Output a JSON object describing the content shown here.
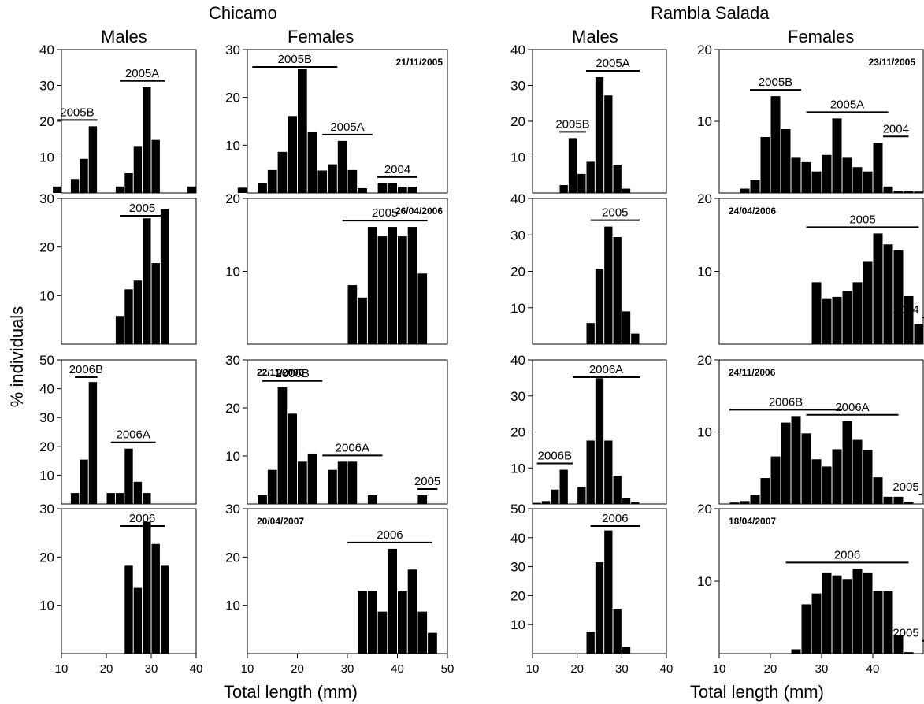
{
  "figure": {
    "sites": [
      "Chicamo",
      "Rambla Salada"
    ],
    "columns": [
      "Males",
      "Females",
      "Males",
      "Females"
    ],
    "ylabel": "% individuals",
    "xlabel": "Total length (mm)"
  },
  "chart_data": [
    {
      "type": "bar",
      "site": "Chicamo",
      "sex": "Males",
      "date": "",
      "ylim": [
        0,
        40
      ],
      "yticks": [
        10,
        20,
        30,
        40
      ],
      "xlim": [
        10,
        40
      ],
      "xticks": [
        10,
        20,
        30,
        40
      ],
      "bin_width": 2,
      "x": [
        9,
        13,
        15,
        17,
        23,
        25,
        27,
        29,
        31,
        39
      ],
      "values": [
        1.8,
        3.9,
        9.5,
        18.6,
        1.8,
        5.5,
        12.9,
        29.5,
        14.8,
        1.8
      ],
      "cohorts": [
        {
          "label": "2005B",
          "x0": 9,
          "x1": 18
        },
        {
          "label": "2005A",
          "x0": 23,
          "x1": 33
        }
      ]
    },
    {
      "type": "bar",
      "site": "Chicamo",
      "sex": "Females",
      "date": "21/11/2005",
      "ylim": [
        0,
        30
      ],
      "yticks": [
        10,
        20,
        30
      ],
      "xlim": [
        10,
        50
      ],
      "xticks": [
        10,
        20,
        30,
        40,
        50
      ],
      "bin_width": 2,
      "x": [
        9,
        13,
        15,
        17,
        19,
        21,
        23,
        25,
        27,
        29,
        31,
        33,
        37,
        39,
        41,
        43
      ],
      "values": [
        1.1,
        2.1,
        4.8,
        8.6,
        16.1,
        26.0,
        12.7,
        4.7,
        6.0,
        10.9,
        4.8,
        1.0,
        2.0,
        2.0,
        1.3,
        1.3
      ],
      "cohorts": [
        {
          "label": "2005B",
          "x0": 11,
          "x1": 28
        },
        {
          "label": "2005A",
          "x0": 25,
          "x1": 35
        },
        {
          "label": "2004",
          "x0": 36,
          "x1": 44
        }
      ]
    },
    {
      "type": "bar",
      "site": "Rambla Salada",
      "sex": "Males",
      "date": "",
      "ylim": [
        0,
        40
      ],
      "yticks": [
        10,
        20,
        30,
        40
      ],
      "xlim": [
        10,
        40
      ],
      "xticks": [
        10,
        20,
        30,
        40
      ],
      "bin_width": 2,
      "x": [
        17,
        19,
        21,
        23,
        25,
        27,
        29,
        31
      ],
      "values": [
        2.2,
        15.3,
        5.3,
        8.7,
        32.3,
        27.2,
        7.9,
        1.2
      ],
      "cohorts": [
        {
          "label": "2005B",
          "x0": 16,
          "x1": 22
        },
        {
          "label": "2005A",
          "x0": 22,
          "x1": 34
        }
      ]
    },
    {
      "type": "bar",
      "site": "Rambla Salada",
      "sex": "Females",
      "date": "23/11/2005",
      "ylim": [
        0,
        20
      ],
      "yticks": [
        10,
        20
      ],
      "xlim": [
        10,
        50
      ],
      "xticks": [
        10,
        20,
        30,
        40,
        50
      ],
      "bin_width": 2,
      "x": [
        15,
        17,
        19,
        21,
        23,
        25,
        27,
        29,
        31,
        33,
        35,
        37,
        39,
        41,
        43,
        45,
        47,
        49
      ],
      "values": [
        0.6,
        1.8,
        7.8,
        13.5,
        8.9,
        4.9,
        4.3,
        3.0,
        5.3,
        10.4,
        4.9,
        3.6,
        3.0,
        7.0,
        0.9,
        0.3,
        0.3,
        0.2
      ],
      "cohorts": [
        {
          "label": "2005B",
          "x0": 16,
          "x1": 26
        },
        {
          "label": "2005A",
          "x0": 27,
          "x1": 43
        },
        {
          "label": "2004",
          "x0": 42,
          "x1": 47
        }
      ]
    },
    {
      "type": "bar",
      "site": "Chicamo",
      "sex": "Males",
      "date": "",
      "ylim": [
        0,
        30
      ],
      "yticks": [
        10,
        20,
        30
      ],
      "xlim": [
        10,
        40
      ],
      "xticks": [
        10,
        20,
        30,
        40
      ],
      "bin_width": 2,
      "x": [
        23,
        25,
        27,
        29,
        31,
        33
      ],
      "values": [
        5.8,
        11.3,
        13.1,
        25.9,
        16.7,
        27.8
      ],
      "cohorts": [
        {
          "label": "2005",
          "x0": 23,
          "x1": 33
        }
      ]
    },
    {
      "type": "bar",
      "site": "Chicamo",
      "sex": "Females",
      "date": "26/04/2006",
      "ylim": [
        0,
        20
      ],
      "yticks": [
        10,
        20
      ],
      "xlim": [
        10,
        50
      ],
      "xticks": [
        10,
        20,
        30,
        40,
        50
      ],
      "bin_width": 2,
      "x": [
        31,
        33,
        35,
        37,
        39,
        41,
        43,
        45
      ],
      "values": [
        8.1,
        6.4,
        16.1,
        14.8,
        16.1,
        14.8,
        16.1,
        9.7
      ],
      "cohorts": [
        {
          "label": "2005",
          "x0": 29,
          "x1": 46
        }
      ]
    },
    {
      "type": "bar",
      "site": "Rambla Salada",
      "sex": "Males",
      "date": "",
      "ylim": [
        0,
        40
      ],
      "yticks": [
        10,
        20,
        30,
        40
      ],
      "xlim": [
        10,
        40
      ],
      "xticks": [
        10,
        20,
        30,
        40
      ],
      "bin_width": 2,
      "x": [
        23,
        25,
        27,
        29,
        31,
        33
      ],
      "values": [
        5.8,
        20.7,
        32.3,
        29.4,
        9.0,
        2.9
      ],
      "cohorts": [
        {
          "label": "2005",
          "x0": 23,
          "x1": 34
        }
      ]
    },
    {
      "type": "bar",
      "site": "Rambla Salada",
      "sex": "Females",
      "date": "24/04/2006",
      "ylim": [
        0,
        20
      ],
      "yticks": [
        10,
        20
      ],
      "xlim": [
        10,
        50
      ],
      "xticks": [
        10,
        20,
        30,
        40,
        50
      ],
      "bin_width": 2,
      "x": [
        29,
        31,
        33,
        35,
        37,
        39,
        41,
        43,
        45,
        47,
        49,
        51
      ],
      "values": [
        8.5,
        6.2,
        6.5,
        7.3,
        8.5,
        11.3,
        15.2,
        13.7,
        12.9,
        6.6,
        2.8,
        1.3
      ],
      "cohorts": [
        {
          "label": "2005",
          "x0": 27,
          "x1": 49
        },
        {
          "label": "2004",
          "x0": 50,
          "x1": 55
        }
      ]
    },
    {
      "type": "bar",
      "site": "Chicamo",
      "sex": "Males",
      "date": "",
      "ylim": [
        0,
        50
      ],
      "yticks": [
        10,
        20,
        30,
        40,
        50
      ],
      "xlim": [
        10,
        40
      ],
      "xticks": [
        10,
        20,
        30,
        40
      ],
      "bin_width": 2,
      "x": [
        13,
        15,
        17,
        21,
        23,
        25,
        27,
        29
      ],
      "values": [
        3.8,
        15.4,
        42.3,
        3.8,
        3.8,
        19.2,
        7.7,
        3.8
      ],
      "cohorts": [
        {
          "label": "2006B",
          "x0": 13,
          "x1": 18
        },
        {
          "label": "2006A",
          "x0": 21,
          "x1": 31
        }
      ]
    },
    {
      "type": "bar",
      "site": "Chicamo",
      "sex": "Females",
      "date": "22/11/2006",
      "ylim": [
        0,
        30
      ],
      "yticks": [
        10,
        20,
        30
      ],
      "xlim": [
        10,
        50
      ],
      "xticks": [
        10,
        20,
        30,
        40,
        50
      ],
      "bin_width": 2,
      "x": [
        13,
        15,
        17,
        19,
        21,
        23,
        27,
        29,
        31,
        35,
        45
      ],
      "values": [
        1.8,
        7.1,
        24.3,
        18.8,
        8.8,
        10.5,
        7.1,
        8.8,
        8.8,
        1.8,
        1.8
      ],
      "cohorts": [
        {
          "label": "2006B",
          "x0": 13,
          "x1": 25
        },
        {
          "label": "2006A",
          "x0": 25,
          "x1": 37
        },
        {
          "label": "2005",
          "x0": 44,
          "x1": 48
        }
      ]
    },
    {
      "type": "bar",
      "site": "Rambla Salada",
      "sex": "Males",
      "date": "",
      "ylim": [
        0,
        40
      ],
      "yticks": [
        10,
        20,
        30,
        40
      ],
      "xlim": [
        10,
        40
      ],
      "xticks": [
        10,
        20,
        30,
        40
      ],
      "bin_width": 2,
      "x": [
        11,
        13,
        15,
        17,
        21,
        23,
        25,
        27,
        29,
        31,
        33
      ],
      "values": [
        0.3,
        0.8,
        4.0,
        9.5,
        4.7,
        17.6,
        34.9,
        17.6,
        7.8,
        1.6,
        0.5
      ],
      "cohorts": [
        {
          "label": "2006B",
          "x0": 11,
          "x1": 19
        },
        {
          "label": "2006A",
          "x0": 19,
          "x1": 34
        }
      ]
    },
    {
      "type": "bar",
      "site": "Rambla Salada",
      "sex": "Females",
      "date": "24/11/2006",
      "ylim": [
        0,
        20
      ],
      "yticks": [
        10,
        20
      ],
      "xlim": [
        10,
        50
      ],
      "xticks": [
        10,
        20,
        30,
        40,
        50
      ],
      "bin_width": 2,
      "x": [
        13,
        15,
        17,
        19,
        21,
        23,
        25,
        27,
        29,
        31,
        33,
        35,
        37,
        39,
        41,
        43,
        45,
        47,
        51,
        53
      ],
      "values": [
        0.2,
        0.4,
        1.3,
        3.6,
        6.6,
        11.3,
        12.2,
        9.8,
        6.2,
        5.2,
        7.6,
        11.5,
        8.9,
        7.5,
        3.7,
        1.0,
        1.0,
        0.3,
        0.3,
        0.2
      ],
      "cohorts": [
        {
          "label": "2006B",
          "x0": 12,
          "x1": 34
        },
        {
          "label": "2006A",
          "x0": 27,
          "x1": 45
        },
        {
          "label": "2005",
          "x0": 49,
          "x1": 55
        }
      ]
    },
    {
      "type": "bar",
      "site": "Chicamo",
      "sex": "Males",
      "date": "",
      "ylim": [
        0,
        30
      ],
      "yticks": [
        10,
        20,
        30
      ],
      "xlim": [
        10,
        40
      ],
      "xticks": [
        10,
        20,
        30,
        40
      ],
      "bin_width": 2,
      "x": [
        25,
        27,
        29,
        31,
        33
      ],
      "values": [
        18.2,
        13.6,
        27.3,
        22.7,
        18.2
      ],
      "cohorts": [
        {
          "label": "2006",
          "x0": 23,
          "x1": 33
        }
      ]
    },
    {
      "type": "bar",
      "site": "Chicamo",
      "sex": "Females",
      "date": "20/04/2007",
      "ylim": [
        0,
        30
      ],
      "yticks": [
        10,
        20,
        30
      ],
      "xlim": [
        10,
        50
      ],
      "xticks": [
        10,
        20,
        30,
        40,
        50
      ],
      "bin_width": 2,
      "x": [
        33,
        35,
        37,
        39,
        41,
        43,
        45,
        47
      ],
      "values": [
        13.0,
        13.0,
        8.7,
        21.7,
        13.0,
        17.4,
        8.7,
        4.3
      ],
      "cohorts": [
        {
          "label": "2006",
          "x0": 30,
          "x1": 47
        }
      ]
    },
    {
      "type": "bar",
      "site": "Rambla Salada",
      "sex": "Males",
      "date": "",
      "ylim": [
        0,
        50
      ],
      "yticks": [
        10,
        20,
        30,
        40,
        50
      ],
      "xlim": [
        10,
        40
      ],
      "xticks": [
        10,
        20,
        30,
        40
      ],
      "bin_width": 2,
      "x": [
        23,
        25,
        27,
        29,
        31
      ],
      "values": [
        7.5,
        31.5,
        42.5,
        15.5,
        2.3
      ],
      "cohorts": [
        {
          "label": "2006",
          "x0": 23,
          "x1": 34
        }
      ]
    },
    {
      "type": "bar",
      "site": "Rambla Salada",
      "sex": "Females",
      "date": "18/04/2007",
      "ylim": [
        0,
        20
      ],
      "yticks": [
        10,
        20
      ],
      "xlim": [
        10,
        50
      ],
      "xticks": [
        10,
        20,
        30,
        40,
        50
      ],
      "bin_width": 2,
      "x": [
        25,
        27,
        29,
        31,
        33,
        35,
        37,
        39,
        41,
        43,
        45,
        47,
        51,
        53
      ],
      "values": [
        0.6,
        6.8,
        8.3,
        11.1,
        10.8,
        10.3,
        11.7,
        11.1,
        8.6,
        8.6,
        2.5,
        0.2,
        0.9,
        0.3
      ],
      "cohorts": [
        {
          "label": "2006",
          "x0": 23,
          "x1": 47
        },
        {
          "label": "2005",
          "x0": 51,
          "x1": 57
        }
      ]
    }
  ]
}
